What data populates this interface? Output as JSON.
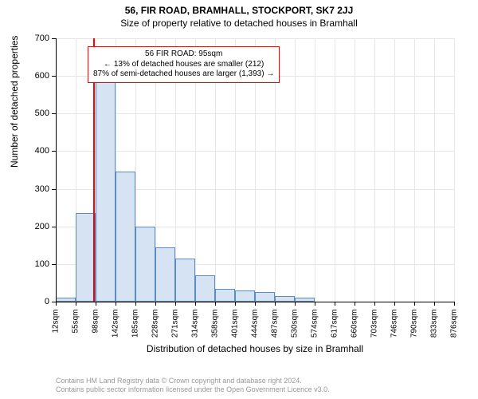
{
  "title_line1": "56, FIR ROAD, BRAMHALL, STOCKPORT, SK7 2JJ",
  "title_line2": "Size of property relative to detached houses in Bramhall",
  "ylabel": "Number of detached properties",
  "xlabel": "Distribution of detached houses by size in Bramhall",
  "chart": {
    "type": "histogram",
    "ylim": [
      0,
      700
    ],
    "ytick_step": 100,
    "yticks": [
      0,
      100,
      200,
      300,
      400,
      500,
      600,
      700
    ],
    "xticks_labels": [
      "12sqm",
      "55sqm",
      "98sqm",
      "142sqm",
      "185sqm",
      "228sqm",
      "271sqm",
      "314sqm",
      "358sqm",
      "401sqm",
      "444sqm",
      "487sqm",
      "530sqm",
      "574sqm",
      "617sqm",
      "660sqm",
      "703sqm",
      "746sqm",
      "790sqm",
      "833sqm",
      "876sqm"
    ],
    "values": [
      10,
      235,
      600,
      345,
      200,
      145,
      115,
      70,
      35,
      30,
      25,
      15,
      10,
      0,
      0,
      0,
      0,
      0,
      0,
      0
    ],
    "bar_fill": "#d6e3f3",
    "bar_stroke": "#5b8bc4",
    "grid_color": "#e6e6e6",
    "axis_color": "#000000",
    "background_color": "#ffffff",
    "label_fontsize": 12,
    "tick_fontsize": 10,
    "indicator_x_value": "95",
    "indicator_color": "#ff0000",
    "annot_border": "#ff0000",
    "annot_lines": [
      "56 FIR ROAD: 95sqm",
      "← 13% of detached houses are smaller (212)",
      "87% of semi-detached houses are larger (1,393) →"
    ]
  },
  "footer_line1": "Contains HM Land Registry data © Crown copyright and database right 2024.",
  "footer_line2": "Contains public sector information licensed under the Open Government Licence v3.0."
}
